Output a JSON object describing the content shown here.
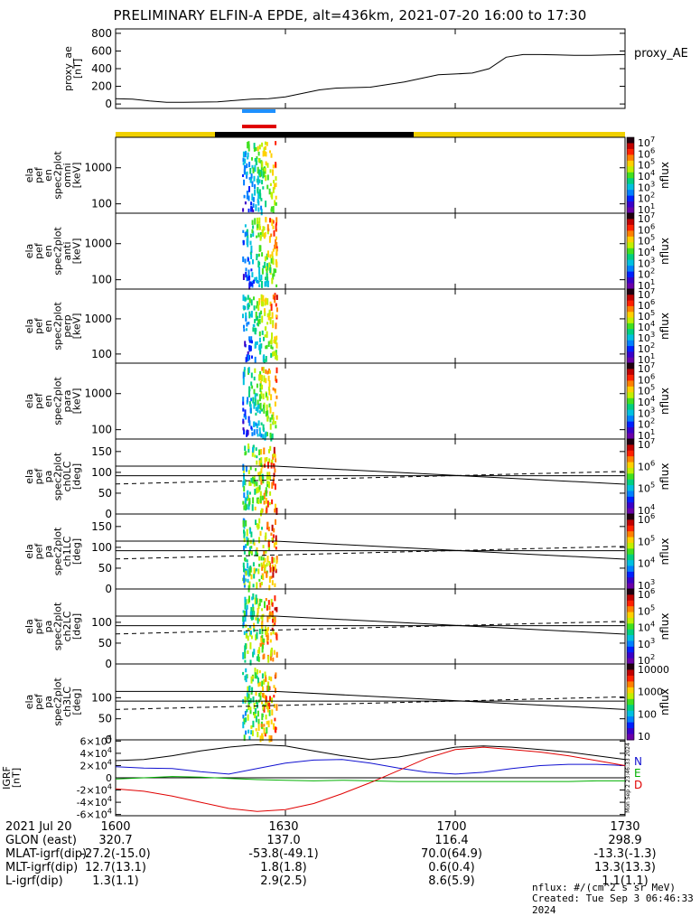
{
  "title": "PRELIMINARY ELFIN-A EPDE, alt=436km, 2021-07-20 16:00 to 17:30",
  "colors": {
    "axis": "#000000",
    "orbit_sun": "#f0d000",
    "orbit_shadow": "#000000",
    "science_blue": "#1e90ff",
    "science_red": "#e00000",
    "grf_N": "#1010d0",
    "grf_E": "#00b000",
    "grf_D": "#e00000",
    "grf_total": "#000000"
  },
  "time_axis": {
    "labels": [
      "1600",
      "1630",
      "1700",
      "1730"
    ],
    "rows": [
      {
        "label": "2021 Jul 20",
        "values": [
          "1600",
          "1630",
          "1700",
          "1730"
        ]
      },
      {
        "label": "GLON (east)",
        "values": [
          "320.7",
          "137.0",
          "116.4",
          "298.9"
        ]
      },
      {
        "label": "MLAT-igrf(dip)",
        "values": [
          "-27.2(-15.0)",
          "-53.8(-49.1)",
          "70.0(64.9)",
          "-13.3(-1.3)"
        ]
      },
      {
        "label": "MLT-igrf(dip)",
        "values": [
          "12.7(13.1)",
          "1.8(1.8)",
          "0.6(0.4)",
          "13.3(13.3)"
        ]
      },
      {
        "label": "L-igrf(dip)",
        "values": [
          "1.3(1.1)",
          "2.9(2.5)",
          "8.6(5.9)",
          "1.1(1.1)"
        ]
      }
    ]
  },
  "footer": {
    "units": "nflux: #/(cm^2 s sr MeV)",
    "created": "Created: Tue Sep  3 06:46:33 2024",
    "side_stamp": "Mon Sep  2 23:46:33 2024"
  },
  "chart_data": [
    {
      "type": "line",
      "ylabel": "proxy_ae [nT]",
      "legend": "proxy_AE",
      "ylim": [
        -50,
        850
      ],
      "yticks": [
        "800",
        "600",
        "400",
        "200",
        "0"
      ],
      "x_minutes": [
        0,
        3,
        6,
        9,
        12,
        15,
        18,
        21,
        24,
        27,
        30,
        33,
        36,
        39,
        42,
        45,
        48,
        51,
        54,
        57,
        60,
        63,
        66,
        69,
        72,
        75,
        78,
        81,
        84,
        87,
        90
      ],
      "y": [
        60,
        55,
        35,
        20,
        20,
        22,
        25,
        40,
        55,
        60,
        80,
        120,
        160,
        180,
        185,
        190,
        220,
        250,
        290,
        330,
        340,
        350,
        400,
        530,
        560,
        560,
        555,
        550,
        550,
        555,
        560
      ]
    },
    {
      "type": "heatmap",
      "ylabel": "ela pef en spec2plot omni [keV]",
      "zlabel": "nflux",
      "yscale": "log",
      "yticks": [
        "1000",
        "100"
      ],
      "ylim": [
        55,
        7000
      ],
      "zticks": [
        "10^7",
        "10^6",
        "10^5",
        "10^4",
        "10^3",
        "10^2",
        "10^1"
      ]
    },
    {
      "type": "heatmap",
      "ylabel": "ela pef en spec2plot anti [keV]",
      "zlabel": "nflux",
      "yscale": "log",
      "yticks": [
        "1000",
        "100"
      ],
      "ylim": [
        55,
        7000
      ],
      "zticks": [
        "10^7",
        "10^6",
        "10^5",
        "10^4",
        "10^3",
        "10^2",
        "10^1"
      ]
    },
    {
      "type": "heatmap",
      "ylabel": "ela pef en spec2plot perp [keV]",
      "zlabel": "nflux",
      "yscale": "log",
      "yticks": [
        "1000",
        "100"
      ],
      "ylim": [
        55,
        7000
      ],
      "zticks": [
        "10^7",
        "10^6",
        "10^5",
        "10^4",
        "10^3",
        "10^2",
        "10^1"
      ]
    },
    {
      "type": "heatmap",
      "ylabel": "ela pef en spec2plot para [keV]",
      "zlabel": "nflux",
      "yscale": "log",
      "yticks": [
        "1000",
        "100"
      ],
      "ylim": [
        55,
        7000
      ],
      "zticks": [
        "10^7",
        "10^6",
        "10^5",
        "10^4",
        "10^3",
        "10^2",
        "10^1"
      ]
    },
    {
      "type": "heatmap",
      "ylabel": "ela pef pa spec2plot ch0LC [deg]",
      "zlabel": "nflux",
      "ylim": [
        0,
        180
      ],
      "yticks": [
        "150",
        "100",
        "50",
        "0"
      ],
      "zticks": [
        "10^7",
        "10^6",
        "10^5",
        "10^4"
      ]
    },
    {
      "type": "heatmap",
      "ylabel": "ela pef pa spec2plot ch1LC [deg]",
      "zlabel": "nflux",
      "ylim": [
        0,
        180
      ],
      "yticks": [
        "150",
        "100",
        "50",
        "0"
      ],
      "zticks": [
        "10^6",
        "10^5",
        "10^4",
        "10^3"
      ]
    },
    {
      "type": "heatmap",
      "ylabel": "ela pef pa spec2plot ch2LC [deg]",
      "zlabel": "nflux",
      "ylim": [
        0,
        180
      ],
      "yticks": [
        "100",
        "50",
        "0"
      ],
      "zticks": [
        "10^6",
        "10^5",
        "10^4",
        "10^3",
        "10^2"
      ]
    },
    {
      "type": "heatmap",
      "ylabel": "ela pef pa spec2plot ch3LC [deg]",
      "zlabel": "nflux",
      "ylim": [
        0,
        180
      ],
      "yticks": [
        "100",
        "50",
        "0"
      ],
      "zticks": [
        "10000",
        "1000",
        "100",
        "10"
      ]
    },
    {
      "type": "line",
      "ylabel": "IGRF [nT]",
      "ylim": [
        -62000,
        62000
      ],
      "yticks": [
        "6×10^4",
        "4×10^4",
        "2×10^4",
        "0",
        "-2×10^4",
        "-4×10^4",
        "-6×10^4"
      ],
      "legend_entries": [
        "N",
        "E",
        "D"
      ],
      "x_minutes": [
        0,
        5,
        10,
        15,
        20,
        25,
        30,
        35,
        40,
        45,
        50,
        55,
        60,
        65,
        70,
        75,
        80,
        85,
        90
      ],
      "series": [
        {
          "name": "N",
          "values": [
            18000,
            16000,
            15000,
            10000,
            6000,
            15000,
            24000,
            29000,
            30000,
            24000,
            16000,
            9000,
            6000,
            9000,
            15000,
            20000,
            22000,
            22000,
            20000
          ]
        },
        {
          "name": "E",
          "values": [
            -2000,
            0,
            2000,
            1000,
            -1000,
            -3000,
            -4000,
            -5000,
            -4000,
            -5000,
            -6000,
            -6000,
            -6000,
            -6000,
            -6000,
            -6000,
            -6000,
            -5000,
            -5000
          ]
        },
        {
          "name": "D",
          "values": [
            -18000,
            -22000,
            -30000,
            -40000,
            -50000,
            -55000,
            -52000,
            -42000,
            -26000,
            -8000,
            12000,
            32000,
            46000,
            50000,
            46000,
            42000,
            36000,
            28000,
            20000
          ]
        },
        {
          "name": "",
          "values": [
            28000,
            30000,
            36000,
            44000,
            50000,
            54000,
            52000,
            44000,
            36000,
            30000,
            34000,
            42000,
            50000,
            52000,
            50000,
            46000,
            42000,
            36000,
            30000
          ]
        }
      ]
    }
  ]
}
